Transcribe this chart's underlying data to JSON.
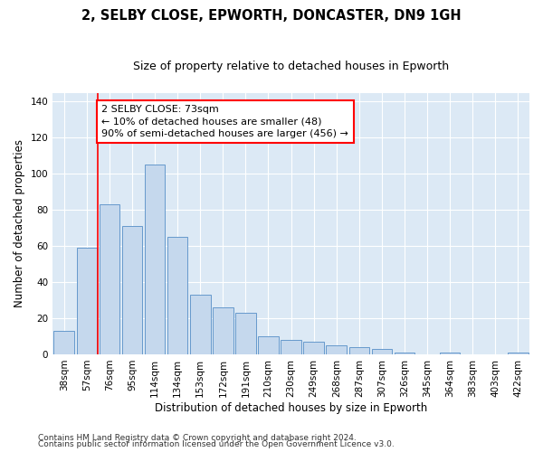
{
  "title": "2, SELBY CLOSE, EPWORTH, DONCASTER, DN9 1GH",
  "subtitle": "Size of property relative to detached houses in Epworth",
  "xlabel": "Distribution of detached houses by size in Epworth",
  "ylabel": "Number of detached properties",
  "bar_color": "#c5d8ed",
  "bar_edge_color": "#6699cc",
  "plot_bg_color": "#dce9f5",
  "fig_bg_color": "#ffffff",
  "categories": [
    "38sqm",
    "57sqm",
    "76sqm",
    "95sqm",
    "114sqm",
    "134sqm",
    "153sqm",
    "172sqm",
    "191sqm",
    "210sqm",
    "230sqm",
    "249sqm",
    "268sqm",
    "287sqm",
    "307sqm",
    "326sqm",
    "345sqm",
    "364sqm",
    "383sqm",
    "403sqm",
    "422sqm"
  ],
  "values": [
    13,
    59,
    83,
    71,
    105,
    65,
    33,
    26,
    23,
    10,
    8,
    7,
    5,
    4,
    3,
    1,
    0,
    1,
    0,
    0,
    1
  ],
  "ylim": [
    0,
    145
  ],
  "yticks": [
    0,
    20,
    40,
    60,
    80,
    100,
    120,
    140
  ],
  "red_line_x": 2.0,
  "annotation_line1": "2 SELBY CLOSE: 73sqm",
  "annotation_line2": "← 10% of detached houses are smaller (48)",
  "annotation_line3": "90% of semi-detached houses are larger (456) →",
  "footer1": "Contains HM Land Registry data © Crown copyright and database right 2024.",
  "footer2": "Contains public sector information licensed under the Open Government Licence v3.0.",
  "grid_color": "#ffffff",
  "title_fontsize": 10.5,
  "subtitle_fontsize": 9,
  "axis_label_fontsize": 8.5,
  "tick_fontsize": 7.5,
  "annotation_fontsize": 8,
  "footer_fontsize": 6.5
}
